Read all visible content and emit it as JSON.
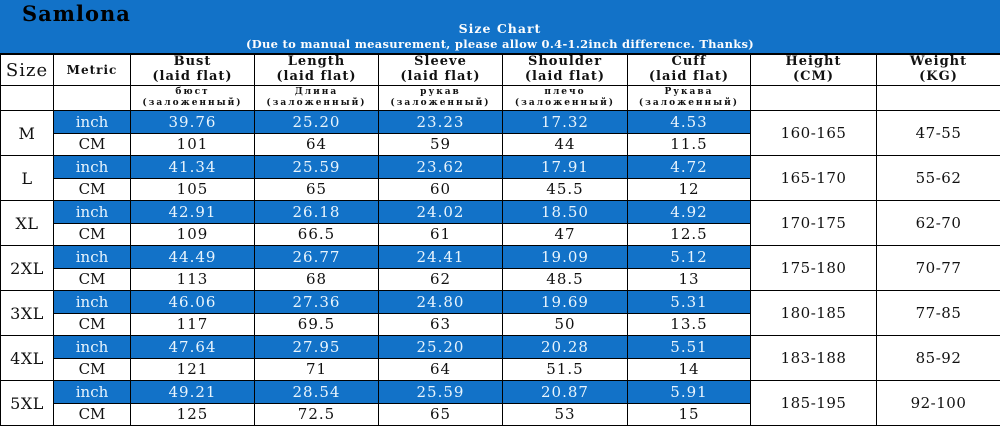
{
  "brand": "Samlona",
  "banner": {
    "title": "Size Chart",
    "subtitle": "(Due to manual measurement, please allow 0.4-1.2inch difference. Thanks)"
  },
  "colors": {
    "banner_blue": "#1272C8",
    "row_highlight_blue": "#1272C8",
    "text_on_blue": "#E9F5FD",
    "grid_border": "#000000"
  },
  "columns": {
    "size": "Size",
    "metric": "Metric",
    "measures": [
      {
        "en": "Bust",
        "sub": "(laid flat)",
        "ru": "бюст",
        "ru_sub": "(заложенный)"
      },
      {
        "en": "Length",
        "sub": "(laid flat)",
        "ru": "Длина",
        "ru_sub": "(заложенный)"
      },
      {
        "en": "Sleeve",
        "sub": "(laid flat)",
        "ru": "рукав",
        "ru_sub": "(заложенный)"
      },
      {
        "en": "Shoulder",
        "sub": "(laid flat)",
        "ru": "плечо",
        "ru_sub": "(заложенный)"
      },
      {
        "en": "Cuff",
        "sub": "(laid flat)",
        "ru": "Рукава",
        "ru_sub": "(заложенный)"
      }
    ],
    "height": {
      "en": "Height",
      "sub": "(CM)"
    },
    "weight": {
      "en": "Weight",
      "sub": "(KG)"
    }
  },
  "unit_labels": {
    "inch": "inch",
    "cm": "CM"
  },
  "rows": [
    {
      "size": "M",
      "inch": [
        "39.76",
        "25.20",
        "23.23",
        "17.32",
        "4.53"
      ],
      "cm": [
        "101",
        "64",
        "59",
        "44",
        "11.5"
      ],
      "height": "160-165",
      "weight": "47-55"
    },
    {
      "size": "L",
      "inch": [
        "41.34",
        "25.59",
        "23.62",
        "17.91",
        "4.72"
      ],
      "cm": [
        "105",
        "65",
        "60",
        "45.5",
        "12"
      ],
      "height": "165-170",
      "weight": "55-62"
    },
    {
      "size": "XL",
      "inch": [
        "42.91",
        "26.18",
        "24.02",
        "18.50",
        "4.92"
      ],
      "cm": [
        "109",
        "66.5",
        "61",
        "47",
        "12.5"
      ],
      "height": "170-175",
      "weight": "62-70"
    },
    {
      "size": "2XL",
      "inch": [
        "44.49",
        "26.77",
        "24.41",
        "19.09",
        "5.12"
      ],
      "cm": [
        "113",
        "68",
        "62",
        "48.5",
        "13"
      ],
      "height": "175-180",
      "weight": "70-77"
    },
    {
      "size": "3XL",
      "inch": [
        "46.06",
        "27.36",
        "24.80",
        "19.69",
        "5.31"
      ],
      "cm": [
        "117",
        "69.5",
        "63",
        "50",
        "13.5"
      ],
      "height": "180-185",
      "weight": "77-85"
    },
    {
      "size": "4XL",
      "inch": [
        "47.64",
        "27.95",
        "25.20",
        "20.28",
        "5.51"
      ],
      "cm": [
        "121",
        "71",
        "64",
        "51.5",
        "14"
      ],
      "height": "183-188",
      "weight": "85-92"
    },
    {
      "size": "5XL",
      "inch": [
        "49.21",
        "28.54",
        "25.59",
        "20.87",
        "5.91"
      ],
      "cm": [
        "125",
        "72.5",
        "65",
        "53",
        "15"
      ],
      "height": "185-195",
      "weight": "92-100"
    }
  ]
}
